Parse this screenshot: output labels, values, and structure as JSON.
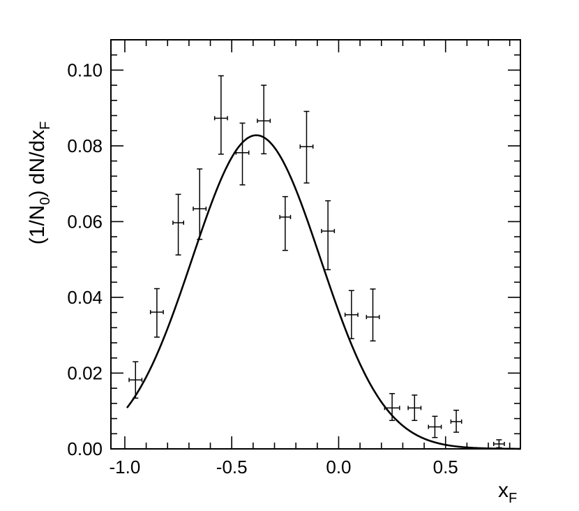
{
  "chart_data": {
    "type": "scatter",
    "title": "",
    "xlabel": {
      "main": "x",
      "sub": "F"
    },
    "ylabel": {
      "pre": "(1/N",
      "sub1": "0",
      "mid": ") dN/dx",
      "sub2": "F"
    },
    "xlim": [
      -1.065,
      0.85
    ],
    "ylim": [
      0.0,
      0.108
    ],
    "x_ticks": [
      -1.0,
      -0.5,
      0.0,
      0.5
    ],
    "x_tick_labels": [
      "-1.0",
      "-0.5",
      "0.0",
      "0.5"
    ],
    "y_ticks": [
      0.0,
      0.02,
      0.04,
      0.06,
      0.08,
      0.1
    ],
    "y_tick_labels": [
      "0.00",
      "0.02",
      "0.04",
      "0.06",
      "0.08",
      "0.10"
    ],
    "grid": false,
    "legend": "none",
    "series": [
      {
        "kind": "points_with_errors",
        "points": [
          {
            "x": -0.95,
            "y": 0.0182,
            "xerr": 0.03,
            "yerr_lo": 0.0048,
            "yerr_hi": 0.0048
          },
          {
            "x": -0.85,
            "y": 0.0361,
            "xerr": 0.03,
            "yerr_lo": 0.0066,
            "yerr_hi": 0.0062
          },
          {
            "x": -0.75,
            "y": 0.0597,
            "xerr": 0.025,
            "yerr_lo": 0.0085,
            "yerr_hi": 0.0075
          },
          {
            "x": -0.65,
            "y": 0.0634,
            "xerr": 0.03,
            "yerr_lo": 0.0081,
            "yerr_hi": 0.0105
          },
          {
            "x": -0.55,
            "y": 0.0873,
            "xerr": 0.03,
            "yerr_lo": 0.0095,
            "yerr_hi": 0.0112
          },
          {
            "x": -0.45,
            "y": 0.0782,
            "xerr": 0.03,
            "yerr_lo": 0.0085,
            "yerr_hi": 0.0078
          },
          {
            "x": -0.35,
            "y": 0.0866,
            "xerr": 0.03,
            "yerr_lo": 0.0087,
            "yerr_hi": 0.0094
          },
          {
            "x": -0.15,
            "y": 0.0798,
            "xerr": 0.03,
            "yerr_lo": 0.0096,
            "yerr_hi": 0.0093
          },
          {
            "x": -0.25,
            "y": 0.0612,
            "xerr": 0.025,
            "yerr_lo": 0.0088,
            "yerr_hi": 0.0054
          },
          {
            "x": -0.05,
            "y": 0.0575,
            "xerr": 0.03,
            "yerr_lo": 0.0102,
            "yerr_hi": 0.008
          },
          {
            "x": 0.06,
            "y": 0.0354,
            "xerr": 0.03,
            "yerr_lo": 0.0063,
            "yerr_hi": 0.0064
          },
          {
            "x": 0.16,
            "y": 0.0348,
            "xerr": 0.03,
            "yerr_lo": 0.0063,
            "yerr_hi": 0.0074
          },
          {
            "x": 0.25,
            "y": 0.0108,
            "xerr": 0.035,
            "yerr_lo": 0.0033,
            "yerr_hi": 0.0038
          },
          {
            "x": 0.355,
            "y": 0.0108,
            "xerr": 0.03,
            "yerr_lo": 0.0033,
            "yerr_hi": 0.0034
          },
          {
            "x": 0.45,
            "y": 0.0058,
            "xerr": 0.03,
            "yerr_lo": 0.0028,
            "yerr_hi": 0.0028
          },
          {
            "x": 0.55,
            "y": 0.0072,
            "xerr": 0.025,
            "yerr_lo": 0.0028,
            "yerr_hi": 0.003
          },
          {
            "x": 0.75,
            "y": 0.0013,
            "xerr": 0.025,
            "yerr_lo": 0.001,
            "yerr_hi": 0.0011
          }
        ]
      },
      {
        "kind": "fit_curve",
        "function": "gaussian",
        "amplitude": 0.0828,
        "mean": -0.385,
        "sigma": 0.3,
        "x_range": [
          -0.99,
          0.85
        ]
      }
    ]
  }
}
